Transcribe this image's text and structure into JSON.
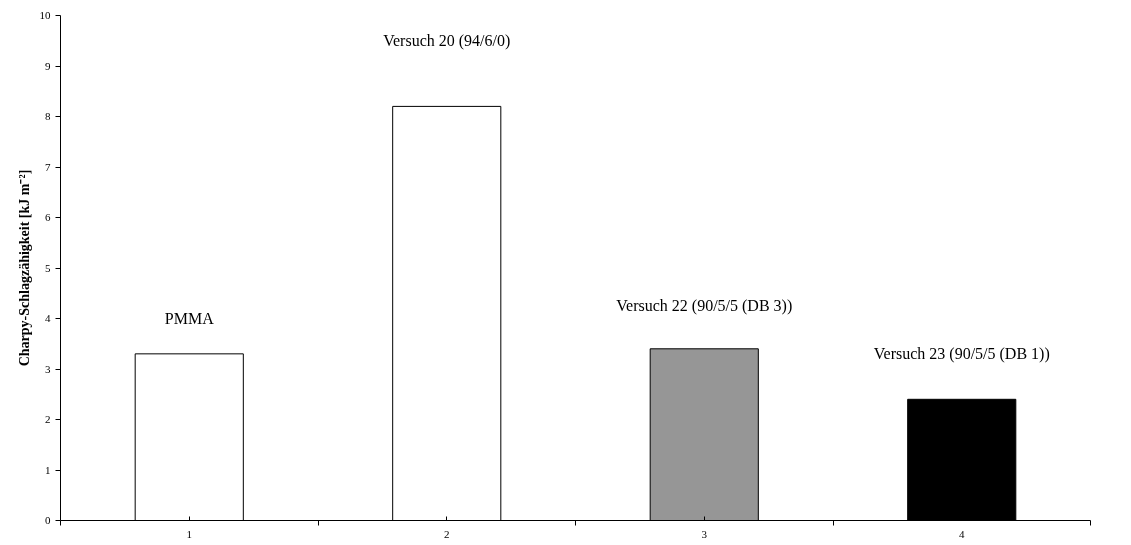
{
  "chart_data": {
    "type": "bar",
    "ylabel": "Charpy-Schlagzähigkeit [kJ m⁻²]",
    "categories": [
      "1",
      "2",
      "3",
      "4"
    ],
    "values": [
      3.3,
      8.2,
      3.4,
      2.4
    ],
    "colors": [
      "#ffffff",
      "#ffffff",
      "#969696",
      "#000000"
    ],
    "ylim": [
      0,
      10
    ],
    "yticks": [
      0,
      1,
      2,
      3,
      4,
      5,
      6,
      7,
      8,
      9,
      10
    ],
    "grid": false,
    "annotations": [
      "PMMA",
      "Versuch 20 (94/6/0)",
      "Versuch 22 (90/5/5 (DB 3))",
      "Versuch 23 (90/5/5 (DB 1))"
    ]
  }
}
